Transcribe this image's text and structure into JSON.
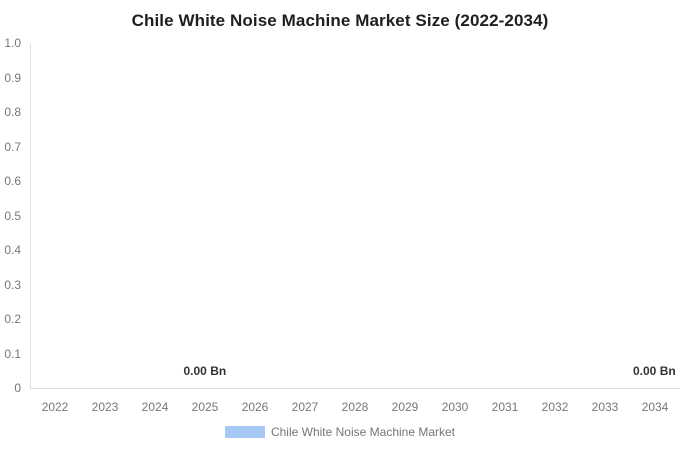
{
  "chart_data": {
    "type": "bar",
    "title": "Chile White Noise Machine Market Size (2022-2034)",
    "categories": [
      "2022",
      "2023",
      "2024",
      "2025",
      "2026",
      "2027",
      "2028",
      "2029",
      "2030",
      "2031",
      "2032",
      "2033",
      "2034"
    ],
    "series": [
      {
        "name": "Chile White Noise Machine Market",
        "color": "#a6c9f5",
        "values": [
          0,
          0,
          0,
          0,
          0,
          0,
          0,
          0,
          0,
          0,
          0,
          0,
          0
        ]
      }
    ],
    "unit": "Bn",
    "xlabel": "",
    "ylabel": "",
    "ylim": [
      0,
      1
    ],
    "ytick_labels": [
      "0",
      "0.1",
      "0.2",
      "0.3",
      "0.4",
      "0.5",
      "0.6",
      "0.7",
      "0.8",
      "0.9",
      "1.0"
    ],
    "grid": false,
    "legend_position": "bottom",
    "data_labels": [
      {
        "text": "0.00 Bn",
        "category": "2025"
      },
      {
        "text": "0.00 Bn",
        "category": "2034"
      }
    ]
  },
  "legend": {
    "label": "Chile White Noise Machine Market",
    "swatch_color": "#a6c9f5"
  },
  "colors": {
    "title": "#1f1f1f",
    "axis_label": "#777777",
    "axis_line": "#e0e0e0",
    "data_label": "#333333",
    "legend_text": "#757575",
    "background": "#ffffff"
  }
}
